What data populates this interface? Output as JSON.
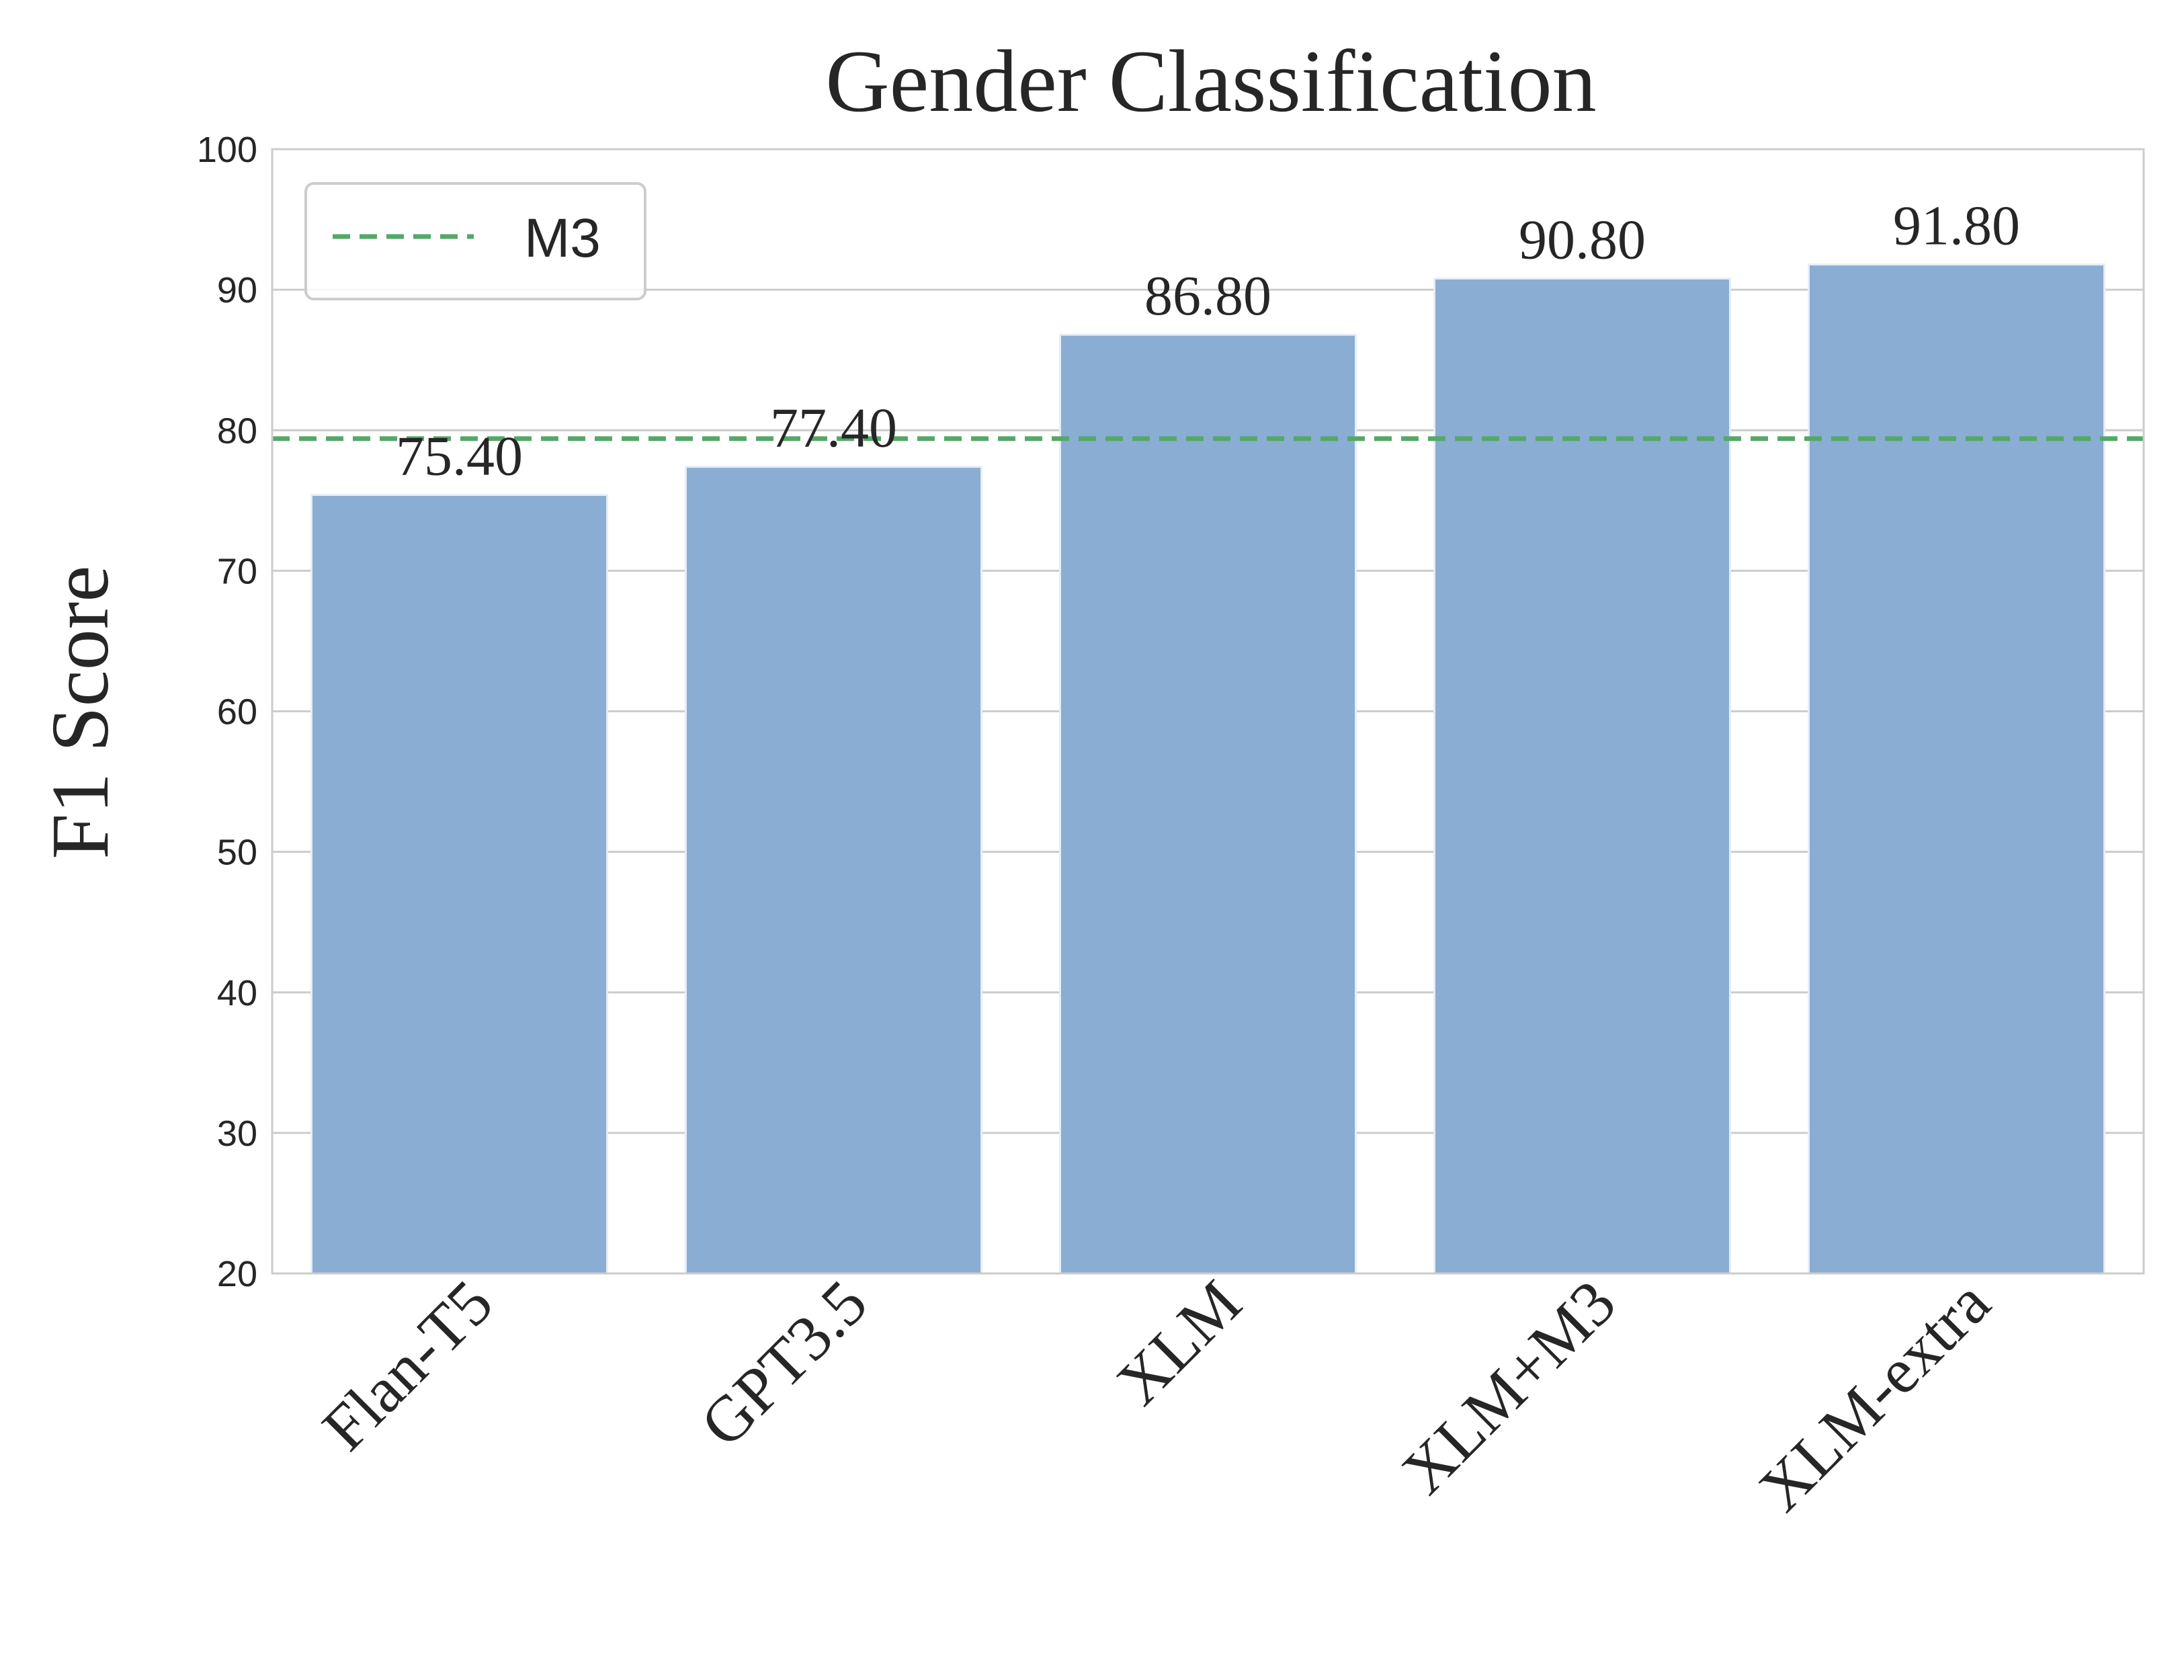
{
  "chart_data": {
    "type": "bar",
    "title": "Gender Classification",
    "xlabel": "",
    "ylabel": "F1 Score",
    "categories": [
      "Flan-T5",
      "GPT3.5",
      "XLM",
      "XLM+M3",
      "XLM-extra"
    ],
    "values": [
      75.4,
      77.4,
      86.8,
      90.8,
      91.8
    ],
    "data_labels": [
      "75.40",
      "77.40",
      "86.80",
      "90.80",
      "91.80"
    ],
    "ylim": [
      20,
      100
    ],
    "yticks": [
      20,
      30,
      40,
      50,
      60,
      70,
      80,
      90,
      100
    ],
    "grid": true,
    "reference_line": {
      "name": "M3",
      "value": 79.4,
      "style": "dashed",
      "color": "#55a868"
    },
    "legend": {
      "position": "top-left",
      "entries": [
        "M3"
      ]
    },
    "colors": {
      "bar": "#8aadd3",
      "bar_edge": "#e8eef6",
      "grid": "#cccccc",
      "axes": "#cccccc",
      "reference": "#55a868"
    }
  }
}
